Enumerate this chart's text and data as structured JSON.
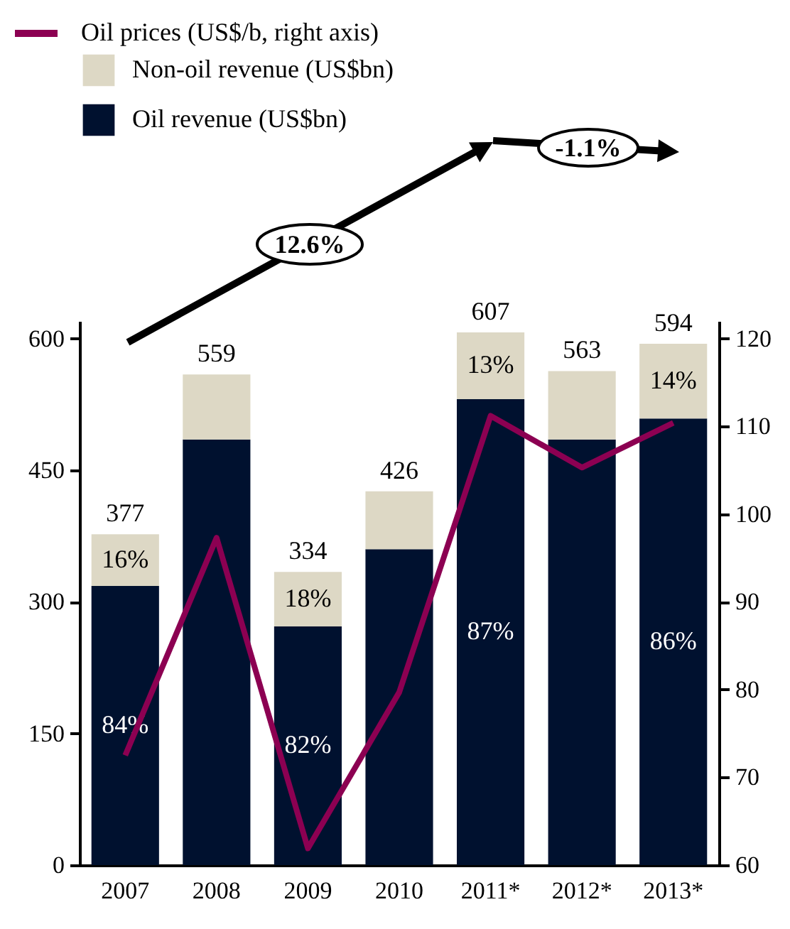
{
  "chart_data": {
    "type": "bar",
    "stacked": true,
    "categories": [
      "2007",
      "2008",
      "2009",
      "2010",
      "2011*",
      "2012*",
      "2013*"
    ],
    "series": [
      {
        "name": "Oil revenue (US$bn)",
        "color": "#00112f",
        "values": [
          318,
          485,
          272,
          360,
          531,
          485,
          509
        ]
      },
      {
        "name": "Non-oil revenue (US$bn)",
        "color": "#ddd8c5",
        "values": [
          59,
          74,
          62,
          66,
          76,
          78,
          85
        ]
      },
      {
        "name": "Oil prices (US$/b, right axis)",
        "type": "line",
        "axis": "y2",
        "color": "#8c0052",
        "values": [
          72.5,
          97.3,
          61.9,
          79.7,
          111.2,
          105.3,
          110.4
        ]
      }
    ],
    "totals": [
      "377",
      "559",
      "334",
      "426",
      "607",
      "563",
      "594"
    ],
    "ylim": [
      0,
      620
    ],
    "yticks": [
      0,
      150,
      300,
      450,
      600
    ],
    "y2lim": [
      60,
      122
    ],
    "y2ticks": [
      60,
      70,
      80,
      90,
      100,
      110,
      120
    ],
    "annotations": [
      "12.6%",
      "-1.1%",
      "84%",
      "82%",
      "87%",
      "86%",
      {
        "text": "16%",
        "x": "2007",
        "y": 377
      },
      {
        "text": "18%",
        "x": "2009",
        "y": 334
      },
      {
        "text": "13%",
        "x": "2011*",
        "y": 607
      },
      {
        "text": "14%",
        "x": "2013*",
        "y": 594
      }
    ],
    "legend": "top left",
    "grid": false,
    "marker": "none",
    "line_style": "solid"
  }
}
